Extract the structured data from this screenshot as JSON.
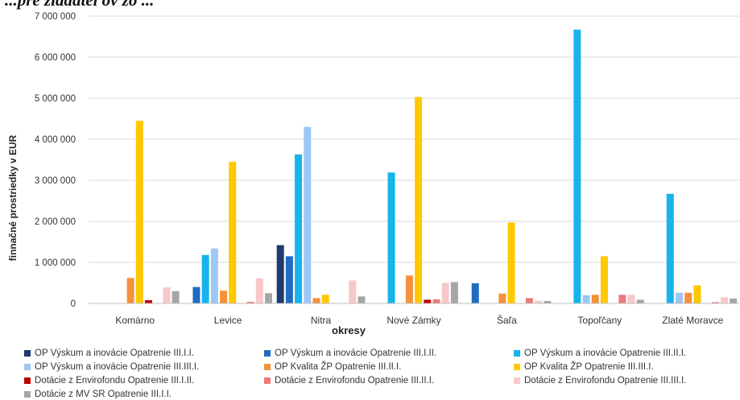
{
  "chart_data": {
    "type": "bar",
    "title": "...pre žiadateľov zo ...",
    "xlabel": "okresy",
    "ylabel": "finnačné prostriedky v EUR",
    "ylim": [
      0,
      7000000
    ],
    "y_ticks": [
      0,
      1000000,
      2000000,
      3000000,
      4000000,
      5000000,
      6000000,
      7000000
    ],
    "y_tick_labels": [
      "0",
      "1 000 000",
      "2 000 000",
      "3 000 000",
      "4 000 000",
      "5 000 000",
      "6 000 000",
      "7 000 000"
    ],
    "grid": true,
    "legend_position": "bottom",
    "categories": [
      "Komárno",
      "Levice",
      "Nitra",
      "Nové Zámky",
      "Šaľa",
      "Topoľčany",
      "Zlaté Moravce"
    ],
    "series": [
      {
        "name": "OP Výskum a inovácie Opatrenie III.I.I.",
        "color": "#1f3a6e",
        "values": [
          0,
          0,
          1420000,
          0,
          0,
          0,
          0
        ]
      },
      {
        "name": "OP Výskum a inovácie Opatrenie III.I.II.",
        "color": "#1f6cc0",
        "values": [
          0,
          400000,
          1150000,
          0,
          490000,
          0,
          0
        ]
      },
      {
        "name": "OP Výskum a inovácie Opatrenie III.II.I.",
        "color": "#17b4ec",
        "values": [
          0,
          1180000,
          3630000,
          3190000,
          0,
          6670000,
          2670000
        ]
      },
      {
        "name": "OP Výskum a inovácie Opatrenie III.III.I.",
        "color": "#9dc7f5",
        "values": [
          0,
          1340000,
          4300000,
          0,
          0,
          200000,
          260000
        ]
      },
      {
        "name": "OP Kvalita ŽP Opatrenie III.II.I.",
        "color": "#f5913a",
        "values": [
          620000,
          310000,
          130000,
          680000,
          240000,
          210000,
          260000
        ]
      },
      {
        "name": "OP Kvalita ŽP Opatrenie III.III.I.",
        "color": "#ffc800",
        "values": [
          4450000,
          3450000,
          210000,
          5030000,
          1970000,
          1150000,
          440000
        ]
      },
      {
        "name": "Dotácie z Envirofondu Opatrenie III.I.II.",
        "color": "#c00000",
        "values": [
          80000,
          0,
          0,
          90000,
          0,
          0,
          0
        ]
      },
      {
        "name": "Dotácie z Envirofondu Opatrenie III.II.I.",
        "color": "#f07878",
        "values": [
          0,
          40000,
          0,
          100000,
          130000,
          210000,
          30000
        ]
      },
      {
        "name": "Dotácie z Envirofondu Opatrenie III.III.I.",
        "color": "#f8c8c8",
        "values": [
          390000,
          610000,
          560000,
          500000,
          60000,
          210000,
          150000
        ]
      },
      {
        "name": "Dotácie z MV SR Opatrenie III.I.I.",
        "color": "#a6a6a6",
        "values": [
          300000,
          250000,
          170000,
          520000,
          60000,
          90000,
          120000
        ]
      }
    ]
  }
}
